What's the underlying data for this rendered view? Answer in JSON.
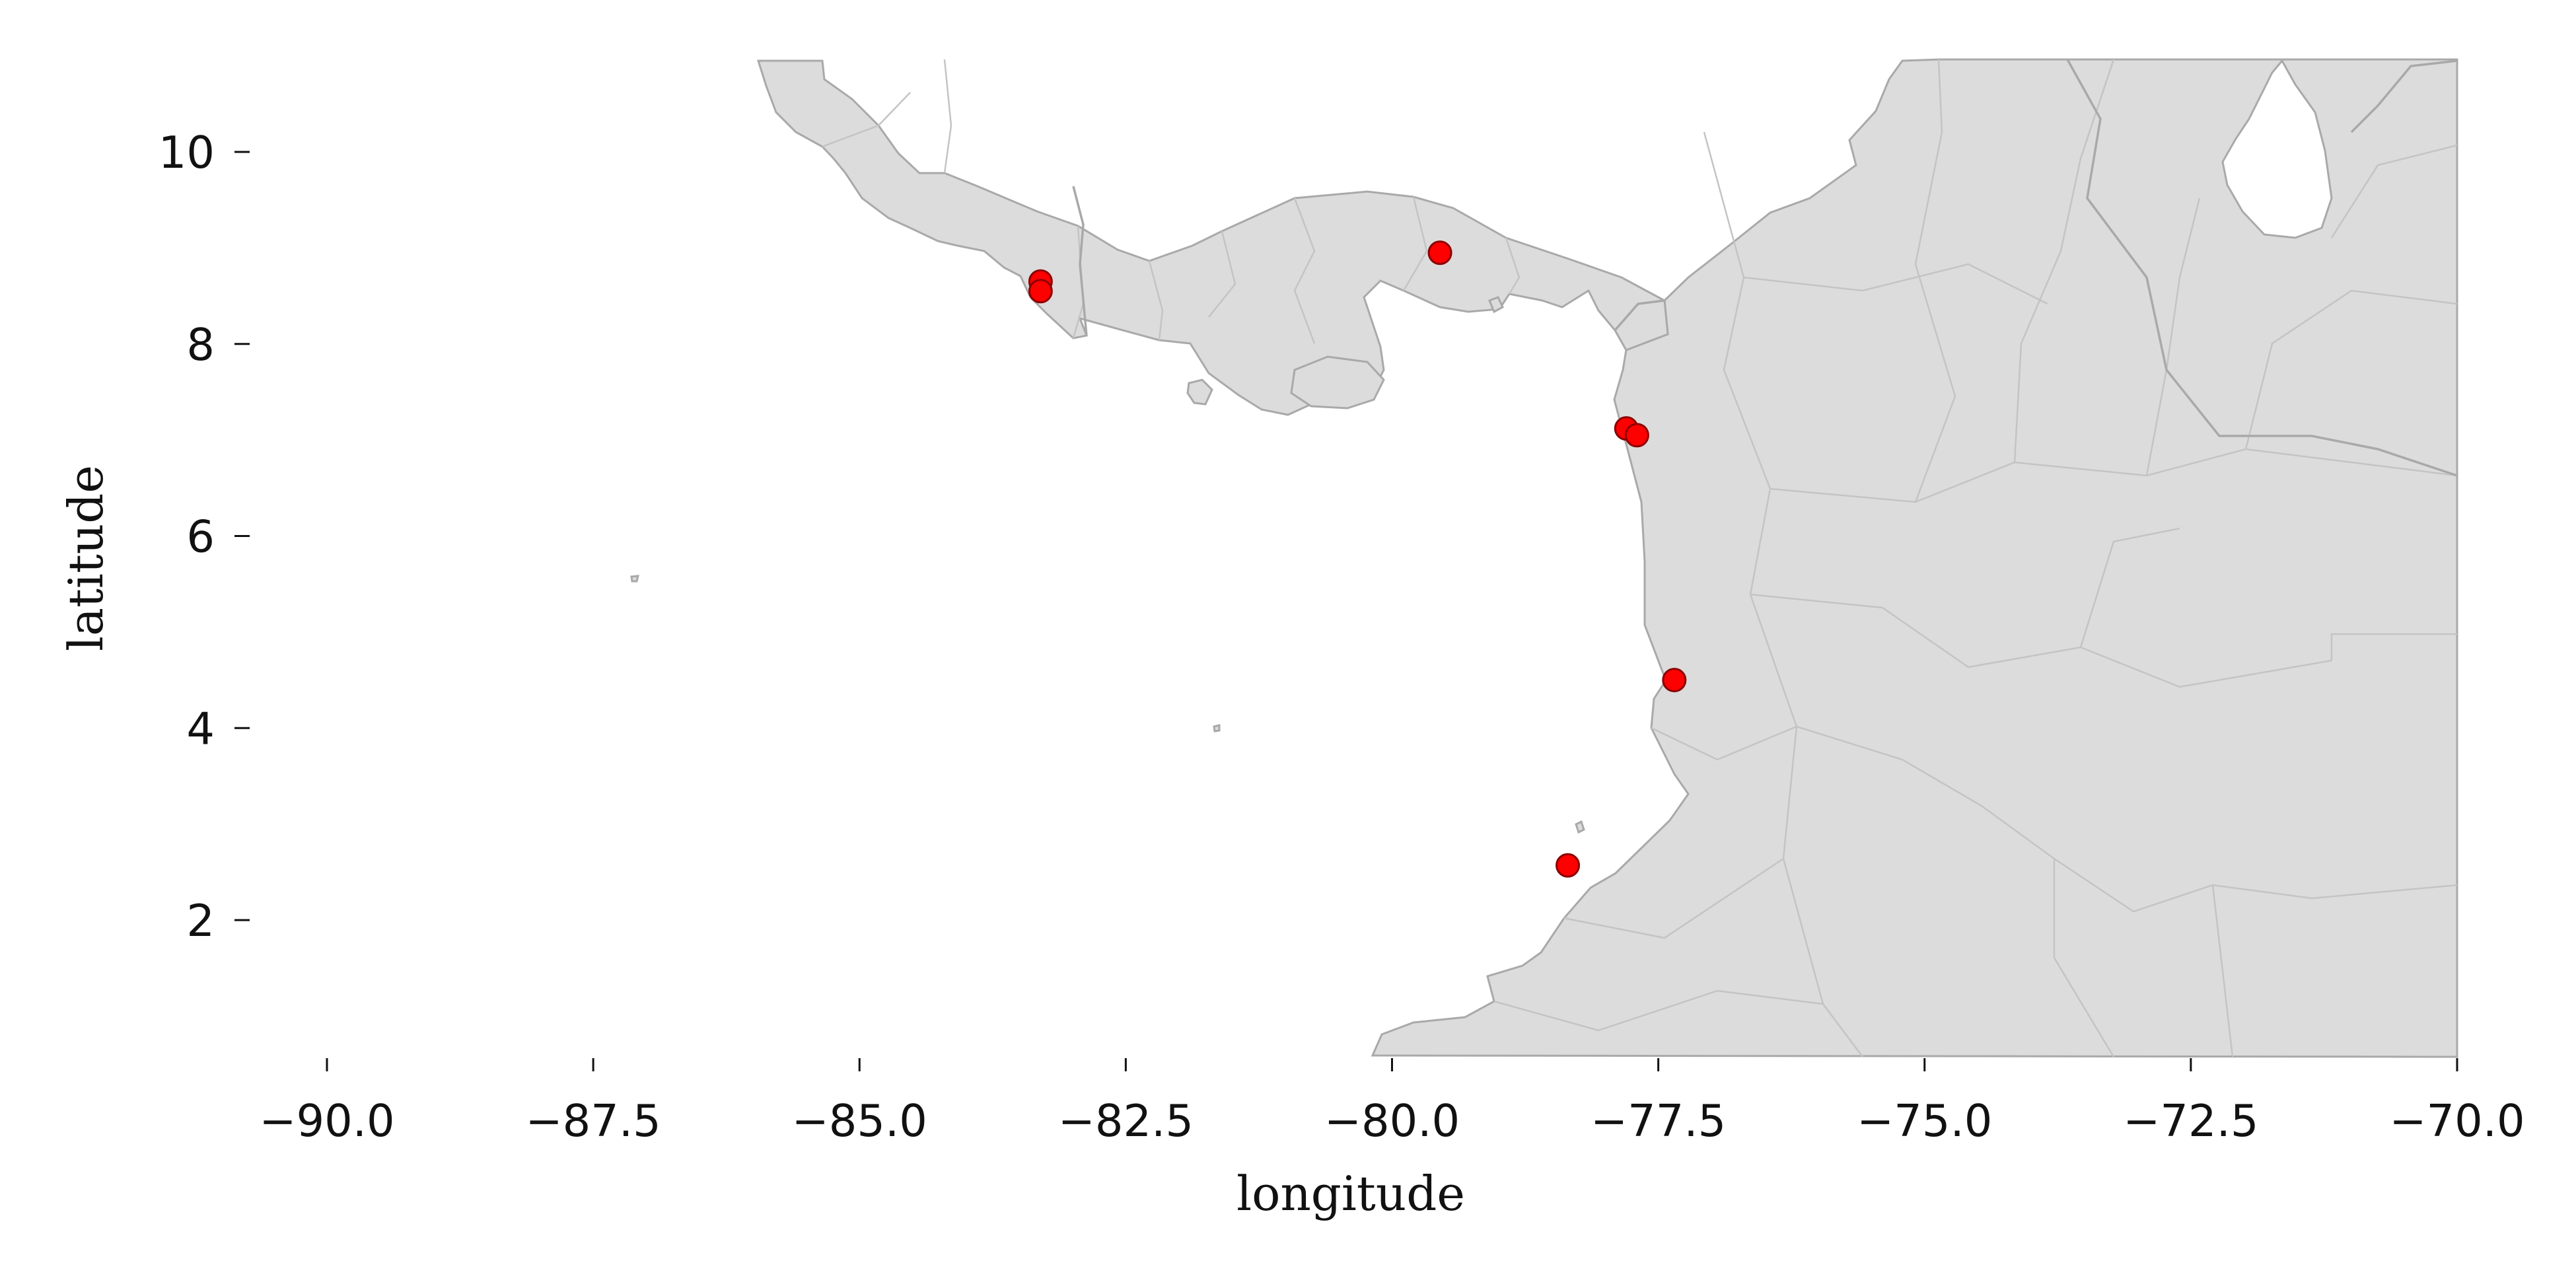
{
  "chart_data": {
    "type": "scatter",
    "title": "",
    "xlabel": "longitude",
    "ylabel": "latitude",
    "xlim": [
      -90.5,
      -69.9
    ],
    "ylim": [
      0.6,
      10.95
    ],
    "x_ticks": [
      -90.0,
      -87.5,
      -85.0,
      -82.5,
      -80.0,
      -77.5,
      -75.0,
      -72.5,
      -70.0
    ],
    "x_tick_labels": [
      "−90.0",
      "−87.5",
      "−85.0",
      "−82.5",
      "−80.0",
      "−77.5",
      "−75.0",
      "−72.5",
      "−70.0"
    ],
    "y_ticks": [
      2,
      4,
      6,
      8,
      10
    ],
    "y_tick_labels": [
      "2",
      "4",
      "6",
      "8",
      "10"
    ],
    "grid": false,
    "basemap": "country and province boundaries",
    "colors": {
      "land": "#dcdcdc",
      "boundary": "#a9a9a9",
      "point_fill": "#ff0000",
      "point_edge": "#8b0000",
      "background": "#ffffff"
    },
    "series": [
      {
        "values": [
          {
            "x": -83.3,
            "y": 8.65
          },
          {
            "x": -83.3,
            "y": 8.55
          },
          {
            "x": -79.55,
            "y": 8.95
          },
          {
            "x": -77.8,
            "y": 7.12
          },
          {
            "x": -77.7,
            "y": 7.05
          },
          {
            "x": -77.35,
            "y": 4.5
          },
          {
            "x": -78.35,
            "y": 2.57
          }
        ]
      }
    ]
  }
}
